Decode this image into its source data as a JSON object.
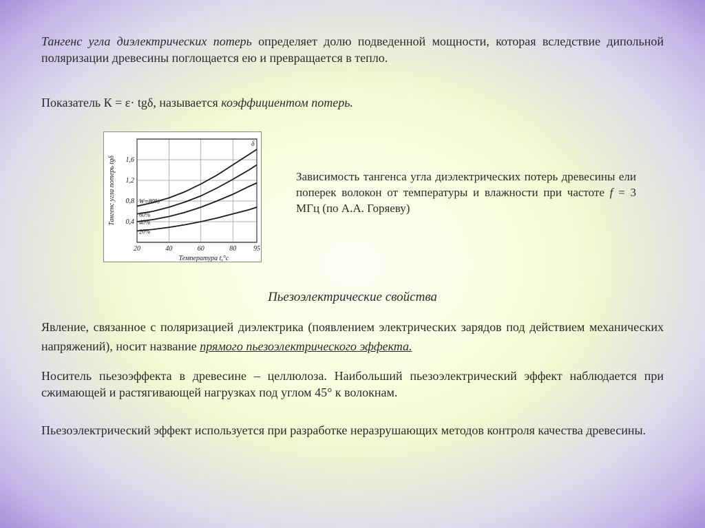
{
  "p1": {
    "italic": "Тангенс угла диэлектрических потерь",
    "rest": " определяет долю подведенной мощности, которая вследствие дипольной поляризации древесины поглощается ею и превращается в тепло."
  },
  "p2": {
    "a": "Показатель    К =  ε· tgδ,    называется ",
    "b": "коэффициентом потерь."
  },
  "chart": {
    "ylabel": "Тангенс угла потерь tgδ",
    "xlabel": "Температура t,°с",
    "xticks": [
      "20",
      "40",
      "60",
      "80",
      "95"
    ],
    "yticks": [
      "0,4",
      "0,8",
      "1,2",
      "1,6"
    ],
    "xrange": [
      20,
      95
    ],
    "yrange": [
      0,
      2.0
    ],
    "series": [
      {
        "label": "W=80%",
        "pts": [
          [
            20,
            0.7
          ],
          [
            30,
            0.77
          ],
          [
            40,
            0.86
          ],
          [
            50,
            0.98
          ],
          [
            60,
            1.13
          ],
          [
            70,
            1.3
          ],
          [
            80,
            1.5
          ],
          [
            90,
            1.7
          ],
          [
            95,
            1.8
          ]
        ]
      },
      {
        "label": "60%",
        "pts": [
          [
            20,
            0.55
          ],
          [
            30,
            0.6
          ],
          [
            40,
            0.68
          ],
          [
            50,
            0.78
          ],
          [
            60,
            0.9
          ],
          [
            70,
            1.05
          ],
          [
            80,
            1.22
          ],
          [
            90,
            1.4
          ],
          [
            95,
            1.5
          ]
        ]
      },
      {
        "label": "40%",
        "pts": [
          [
            20,
            0.4
          ],
          [
            30,
            0.44
          ],
          [
            40,
            0.5
          ],
          [
            50,
            0.58
          ],
          [
            60,
            0.68
          ],
          [
            70,
            0.8
          ],
          [
            80,
            0.93
          ],
          [
            90,
            1.08
          ],
          [
            95,
            1.15
          ]
        ]
      },
      {
        "label": "20%",
        "pts": [
          [
            20,
            0.22
          ],
          [
            30,
            0.25
          ],
          [
            40,
            0.29
          ],
          [
            50,
            0.34
          ],
          [
            60,
            0.4
          ],
          [
            70,
            0.47
          ],
          [
            80,
            0.55
          ],
          [
            90,
            0.63
          ],
          [
            95,
            0.68
          ]
        ]
      }
    ],
    "stroke": "#1a1a1a",
    "bg": "#ffffff",
    "grid": "#666666"
  },
  "caption": {
    "a": "Зависимость тангенса угла диэлектрических потерь древесины ели поперек волокон от температуры и влажности при частоте ",
    "b": "f",
    "c": " = 3 МГц (по А.А. Горяеву)"
  },
  "heading": "Пьезоэлектрические свойства",
  "p3": {
    "a": "Явление, связанное с поляризацией диэлектрика (появлением электрических зарядов под действием механических напряжений), носит название ",
    "b": "прямого пьезоэлектрического эффекта."
  },
  "p4": "Носитель пьезоэффекта  в древесине – целлюлоза. Наибольший пьезоэлектрический эффект наблюдается при сжимающей и растягивающей нагрузках под углом 45° к волокнам.",
  "p5": "Пьезоэлектрический эффект используется при разработке неразрушающих методов контроля качества древесины."
}
